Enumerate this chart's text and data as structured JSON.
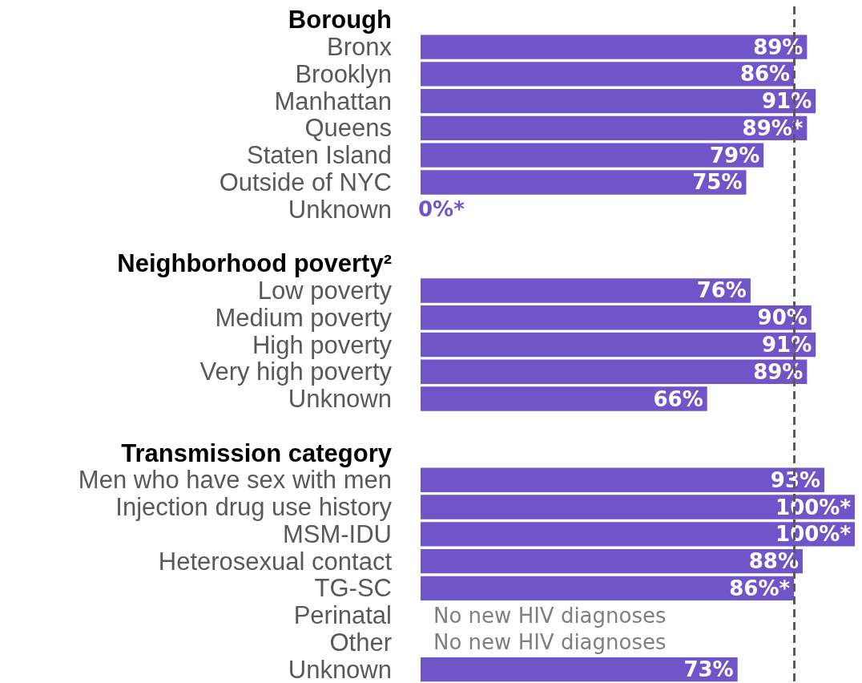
{
  "chart_data": {
    "type": "bar",
    "orientation": "horizontal",
    "categories": [
      "Borough",
      "Bronx",
      "Brooklyn",
      "Manhattan",
      "Queens",
      "Staten Island",
      "Outside of NYC",
      "Unknown",
      null,
      "Neighborhood poverty²",
      "Low poverty",
      "Medium poverty",
      "High poverty",
      "Very high poverty",
      "Unknown",
      null,
      "Transmission category",
      "Men who have sex with men",
      "Injection drug use history",
      "MSM-IDU",
      "Heterosexual contact",
      "TG-SC",
      "Perinatal",
      "Other",
      "Unknown"
    ],
    "values": [
      null,
      89,
      86,
      91,
      89,
      79,
      75,
      0,
      null,
      null,
      76,
      90,
      91,
      89,
      66,
      null,
      null,
      93,
      100,
      100,
      88,
      86,
      null,
      null,
      73
    ],
    "value_labels": [
      null,
      "89%",
      "86%",
      "91%",
      "89%*",
      "79%",
      "75%",
      "0%*",
      null,
      null,
      "76%",
      "90%",
      "91%",
      "89%",
      "66%",
      null,
      null,
      "93%",
      "100%*",
      "100%*",
      "88%",
      "86%*",
      "No new HIV diagnoses",
      "No new HIV diagnoses",
      "73%"
    ],
    "color": "#7055c8",
    "xlim": [
      0,
      100
    ],
    "tick_labels": "y",
    "ref_lines": [
      {
        "axis": "x",
        "value": 86,
        "color": "#595959",
        "line_style": "dashed"
      }
    ]
  }
}
